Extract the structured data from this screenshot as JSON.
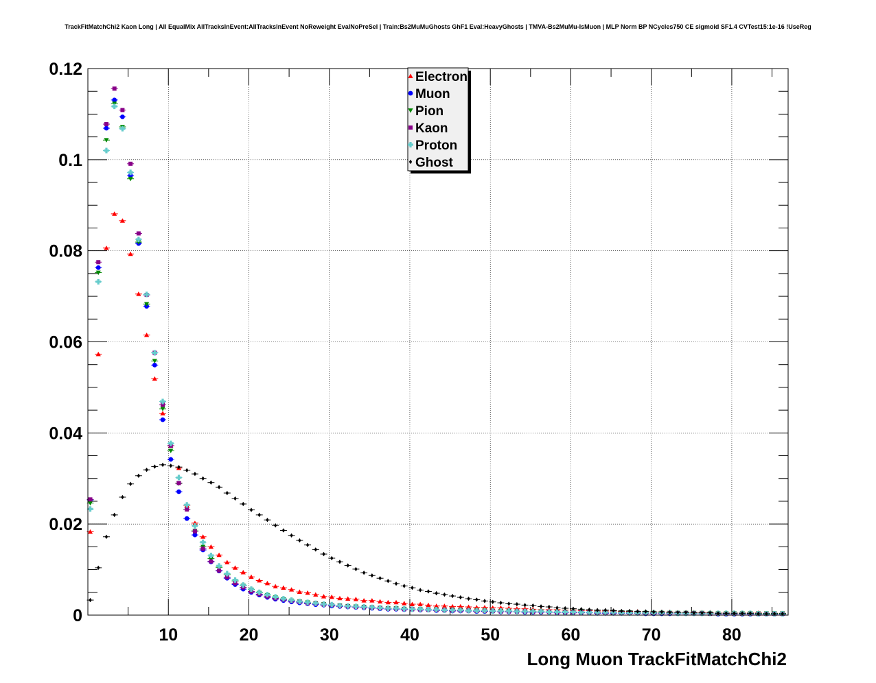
{
  "chart_data": {
    "type": "scatter",
    "title": "TrackFitMatchChi2 Kaon Long | All EqualMix AllTracksInEvent:AllTracksInEvent NoReweight EvalNoPreSel | Train:Bs2MuMuGhosts GhF1 Eval:HeavyGhosts | TMVA-Bs2MuMu-IsMuon | MLP Norm BP NCycles750 CE sigmoid SF1.4 CVTest15:1e-16 !UseReg",
    "xlabel": "Long Muon TrackFitMatchChi2",
    "ylabel": "",
    "xlim": [
      0,
      87
    ],
    "ylim": [
      0,
      0.12
    ],
    "x_ticks": [
      10,
      20,
      30,
      40,
      50,
      60,
      70,
      80
    ],
    "x_tick_labels": [
      "10",
      "20",
      "30",
      "40",
      "50",
      "60",
      "70",
      "80"
    ],
    "y_ticks": [
      0,
      0.02,
      0.04,
      0.06,
      0.08,
      0.1,
      0.12
    ],
    "y_tick_labels": [
      "0",
      "0.02",
      "0.04",
      "0.06",
      "0.08",
      "0.1",
      "0.12"
    ],
    "grid": true,
    "legend_position": "top-center",
    "x": [
      0.3,
      1.3,
      2.3,
      3.3,
      4.3,
      5.3,
      6.3,
      7.3,
      8.3,
      9.3,
      10.3,
      11.3,
      12.3,
      13.3,
      14.3,
      15.3,
      16.3,
      17.3,
      18.3,
      19.3,
      20.3,
      21.3,
      22.3,
      23.3,
      24.3,
      25.3,
      26.3,
      27.3,
      28.3,
      29.3,
      30.3,
      31.3,
      32.3,
      33.3,
      34.3,
      35.3,
      36.3,
      37.3,
      38.3,
      39.3,
      40.3,
      41.3,
      42.3,
      43.3,
      44.3,
      45.3,
      46.3,
      47.3,
      48.3,
      49.3,
      50.3,
      51.3,
      52.3,
      53.3,
      54.3,
      55.3,
      56.3,
      57.3,
      58.3,
      59.3,
      60.3,
      61.3,
      62.3,
      63.3,
      64.3,
      65.3,
      66.3,
      67.3,
      68.3,
      69.3,
      70.3,
      71.3,
      72.3,
      73.3,
      74.3,
      75.3,
      76.3,
      77.3,
      78.3,
      79.3,
      80.3,
      81.3,
      82.3,
      83.3,
      84.3,
      85.3,
      86.3
    ],
    "series": [
      {
        "name": "Electron",
        "color": "#ff0000",
        "marker": "triangle-up",
        "values": [
          0.0183,
          0.0573,
          0.0806,
          0.0881,
          0.0866,
          0.0793,
          0.0705,
          0.0615,
          0.0519,
          0.0443,
          0.0372,
          0.0323,
          0.0241,
          0.0202,
          0.0172,
          0.015,
          0.0132,
          0.0116,
          0.0104,
          0.0094,
          0.0084,
          0.0076,
          0.007,
          0.0063,
          0.006,
          0.0056,
          0.0051,
          0.0049,
          0.0045,
          0.0041,
          0.004,
          0.0037,
          0.0036,
          0.0035,
          0.0032,
          0.0032,
          0.003,
          0.0028,
          0.0028,
          0.0026,
          0.0024,
          0.0024,
          0.0022,
          0.002,
          0.002,
          0.0019,
          0.0019,
          0.0018,
          0.0017,
          0.0017,
          0.0016,
          0.0016,
          0.0015,
          0.0014,
          0.0014,
          0.0013,
          0.0012,
          0.0012,
          0.0012,
          0.0011,
          0.0011,
          0.001,
          0.001,
          0.0009,
          0.0009,
          0.0009,
          0.0008,
          0.0008,
          0.0008,
          0.0007,
          0.0007,
          0.0007,
          0.0007,
          0.0006,
          0.0006,
          0.0006,
          0.0006,
          0.0006,
          0.0005,
          0.0005,
          0.0005,
          0.0005,
          0.0005,
          0.0005,
          0.0004,
          0.0004,
          0.0004
        ]
      },
      {
        "name": "Muon",
        "color": "#0000ff",
        "marker": "circle",
        "values": [
          0.0253,
          0.0763,
          0.1069,
          0.1131,
          0.1094,
          0.0965,
          0.0816,
          0.0678,
          0.0549,
          0.0429,
          0.0342,
          0.0271,
          0.0212,
          0.0176,
          0.0143,
          0.0117,
          0.0097,
          0.0081,
          0.0067,
          0.0057,
          0.005,
          0.0044,
          0.0039,
          0.0035,
          0.0032,
          0.0029,
          0.0027,
          0.0025,
          0.0023,
          0.0022,
          0.002,
          0.0019,
          0.0018,
          0.0017,
          0.0016,
          0.0015,
          0.0014,
          0.0013,
          0.0013,
          0.0012,
          0.0012,
          0.0011,
          0.0011,
          0.001,
          0.001,
          0.0009,
          0.0009,
          0.0009,
          0.0008,
          0.0008,
          0.0008,
          0.0007,
          0.0007,
          0.0007,
          0.0006,
          0.0006,
          0.0006,
          0.0006,
          0.0005,
          0.0005,
          0.0005,
          0.0005,
          0.0005,
          0.0004,
          0.0004,
          0.0004,
          0.0004,
          0.0004,
          0.0004,
          0.0003,
          0.0003,
          0.0003,
          0.0003,
          0.0003,
          0.0003,
          0.0003,
          0.0003,
          0.0003,
          0.0002,
          0.0002,
          0.0002,
          0.0002,
          0.0002,
          0.0002,
          0.0002,
          0.0002,
          0.0002
        ]
      },
      {
        "name": "Pion",
        "color": "#008800",
        "marker": "triangle-down",
        "values": [
          0.0246,
          0.0752,
          0.1043,
          0.1123,
          0.1072,
          0.0958,
          0.0819,
          0.0683,
          0.0558,
          0.0453,
          0.0361,
          0.0289,
          0.0232,
          0.0185,
          0.015,
          0.0124,
          0.0105,
          0.0089,
          0.0075,
          0.0065,
          0.0056,
          0.0049,
          0.0044,
          0.0039,
          0.0035,
          0.0032,
          0.003,
          0.0028,
          0.0026,
          0.0024,
          0.0022,
          0.0021,
          0.002,
          0.0019,
          0.0018,
          0.0017,
          0.0016,
          0.0015,
          0.0015,
          0.0014,
          0.0013,
          0.0013,
          0.0012,
          0.0012,
          0.0011,
          0.0011,
          0.0011,
          0.001,
          0.001,
          0.001,
          0.0009,
          0.0009,
          0.0009,
          0.0008,
          0.0008,
          0.0008,
          0.0008,
          0.0007,
          0.0007,
          0.0007,
          0.0007,
          0.0007,
          0.0006,
          0.0006,
          0.0006,
          0.0006,
          0.0006,
          0.0006,
          0.0005,
          0.0005,
          0.0005,
          0.0005,
          0.0005,
          0.0005,
          0.0005,
          0.0005,
          0.0005,
          0.0004,
          0.0004,
          0.0004,
          0.0004,
          0.0004,
          0.0004,
          0.0004,
          0.0004,
          0.0004,
          0.0004
        ]
      },
      {
        "name": "Kaon",
        "color": "#880088",
        "marker": "square",
        "values": [
          0.0254,
          0.0775,
          0.1078,
          0.1156,
          0.1109,
          0.0991,
          0.0838,
          0.0703,
          0.0576,
          0.0462,
          0.0372,
          0.029,
          0.0232,
          0.0184,
          0.0146,
          0.0118,
          0.0098,
          0.0083,
          0.007,
          0.0061,
          0.0052,
          0.0046,
          0.0041,
          0.0037,
          0.0034,
          0.0031,
          0.0029,
          0.0026,
          0.0025,
          0.0023,
          0.0022,
          0.002,
          0.0019,
          0.0018,
          0.0017,
          0.0016,
          0.0015,
          0.0014,
          0.0014,
          0.0013,
          0.0013,
          0.0012,
          0.0012,
          0.0011,
          0.0011,
          0.001,
          0.001,
          0.001,
          0.0009,
          0.0009,
          0.0009,
          0.0008,
          0.0008,
          0.0008,
          0.0008,
          0.0007,
          0.0007,
          0.0007,
          0.0006,
          0.0006,
          0.0006,
          0.0006,
          0.0006,
          0.0005,
          0.0005,
          0.0005,
          0.0005,
          0.0005,
          0.0005,
          0.0004,
          0.0004,
          0.0004,
          0.0004,
          0.0004,
          0.0004,
          0.0004,
          0.0004,
          0.0003,
          0.0003,
          0.0003,
          0.0003,
          0.0003,
          0.0003,
          0.0003,
          0.0003,
          0.0003,
          0.0003
        ]
      },
      {
        "name": "Proton",
        "color": "#66cccc",
        "marker": "cross",
        "values": [
          0.0233,
          0.0732,
          0.102,
          0.1117,
          0.1068,
          0.0972,
          0.0825,
          0.0704,
          0.0576,
          0.0469,
          0.0377,
          0.0302,
          0.0242,
          0.0196,
          0.016,
          0.0131,
          0.0108,
          0.0091,
          0.0077,
          0.0066,
          0.0057,
          0.005,
          0.0045,
          0.004,
          0.0036,
          0.0033,
          0.003,
          0.0028,
          0.0026,
          0.0024,
          0.0023,
          0.0021,
          0.002,
          0.0019,
          0.0018,
          0.0017,
          0.0016,
          0.0015,
          0.0015,
          0.0014,
          0.0013,
          0.0013,
          0.0012,
          0.0012,
          0.0011,
          0.0011,
          0.0011,
          0.001,
          0.001,
          0.001,
          0.0009,
          0.0009,
          0.0009,
          0.0008,
          0.0008,
          0.0008,
          0.0008,
          0.0007,
          0.0007,
          0.0007,
          0.0007,
          0.0006,
          0.0006,
          0.0006,
          0.0006,
          0.0006,
          0.0005,
          0.0005,
          0.0005,
          0.0005,
          0.0005,
          0.0005,
          0.0005,
          0.0004,
          0.0004,
          0.0004,
          0.0004,
          0.0004,
          0.0004,
          0.0004,
          0.0004,
          0.0004,
          0.0004,
          0.0003,
          0.0003,
          0.0003,
          0.0003
        ]
      },
      {
        "name": "Ghost",
        "color": "#000000",
        "marker": "diamond",
        "values": [
          0.0033,
          0.0104,
          0.0172,
          0.022,
          0.0259,
          0.0288,
          0.0306,
          0.0319,
          0.0326,
          0.033,
          0.0328,
          0.0325,
          0.0318,
          0.031,
          0.03,
          0.0291,
          0.0281,
          0.0268,
          0.0256,
          0.0244,
          0.0231,
          0.022,
          0.0209,
          0.0197,
          0.0186,
          0.0175,
          0.0164,
          0.0154,
          0.0144,
          0.0134,
          0.0125,
          0.0117,
          0.0109,
          0.0101,
          0.0093,
          0.0087,
          0.0081,
          0.0075,
          0.0069,
          0.0064,
          0.006,
          0.0055,
          0.0052,
          0.0048,
          0.0045,
          0.0042,
          0.0039,
          0.0036,
          0.0034,
          0.0031,
          0.0029,
          0.0027,
          0.0025,
          0.0024,
          0.0022,
          0.0021,
          0.0019,
          0.0018,
          0.0016,
          0.0015,
          0.0014,
          0.0013,
          0.0012,
          0.0011,
          0.0011,
          0.001,
          0.0009,
          0.0009,
          0.0008,
          0.0008,
          0.0007,
          0.0007,
          0.0006,
          0.0006,
          0.0006,
          0.0005,
          0.0005,
          0.0005,
          0.0004,
          0.0004,
          0.0004,
          0.0004,
          0.0004,
          0.0003,
          0.0003,
          0.0003,
          0.0003
        ]
      }
    ]
  }
}
